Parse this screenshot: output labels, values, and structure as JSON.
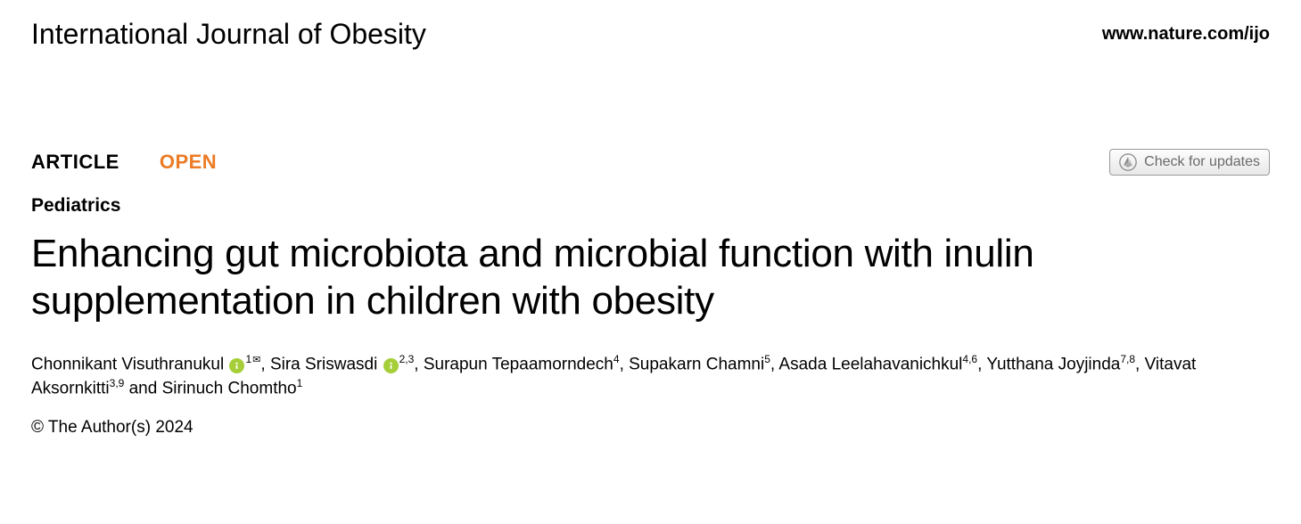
{
  "header": {
    "journal_name": "International Journal of Obesity",
    "journal_url": "www.nature.com/ijo"
  },
  "labels": {
    "article": "ARTICLE",
    "open": "OPEN",
    "check_updates": "Check for updates"
  },
  "category": "Pediatrics",
  "title": "Enhancing gut microbiota and microbial function with inulin supplementation in children with obesity",
  "authors": [
    {
      "name": "Chonnikant Visuthranukul",
      "orcid": true,
      "aff": "1",
      "corresponding": true
    },
    {
      "name": "Sira Sriswasdi",
      "orcid": true,
      "aff": "2,3",
      "corresponding": false
    },
    {
      "name": "Surapun Tepaamorndech",
      "orcid": false,
      "aff": "4",
      "corresponding": false
    },
    {
      "name": "Supakarn Chamni",
      "orcid": false,
      "aff": "5",
      "corresponding": false
    },
    {
      "name": "Asada Leelahavanichkul",
      "orcid": false,
      "aff": "4,6",
      "corresponding": false
    },
    {
      "name": "Yutthana Joyjinda",
      "orcid": false,
      "aff": "7,8",
      "corresponding": false
    },
    {
      "name": "Vitavat Aksornkitti",
      "orcid": false,
      "aff": "3,9",
      "corresponding": false
    },
    {
      "name": "Sirinuch Chomtho",
      "orcid": false,
      "aff": "1",
      "corresponding": false
    }
  ],
  "copyright": "© The Author(s) 2024",
  "colors": {
    "open_label": "#eb7b24",
    "orcid_bg": "#a6ce39",
    "text": "#000000",
    "background": "#ffffff"
  }
}
